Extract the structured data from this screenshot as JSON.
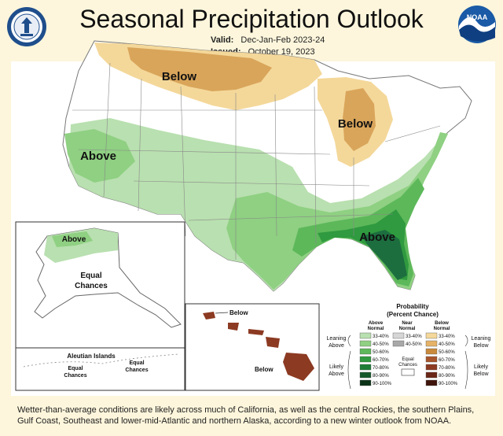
{
  "header": {
    "title": "Seasonal Precipitation Outlook",
    "valid_label": "Valid:",
    "valid_value": "Dec-Jan-Feb 2023-24",
    "issued_label": "Issued:",
    "issued_value": "October 19, 2023"
  },
  "logos": {
    "left": "department-of-commerce-seal",
    "right": "noaa-logo",
    "right_text": "NOAA"
  },
  "map": {
    "conus_labels": {
      "north_plains": "Below",
      "great_lakes": "Below",
      "california": "Above",
      "southeast": "Above"
    },
    "alaska": {
      "above_label": "Above",
      "equal_label_1": "Equal",
      "equal_label_2": "Chances",
      "aleutian_title": "Aleutian Islands",
      "aleutian_left_1": "Equal",
      "aleutian_left_2": "Chances",
      "aleutian_right_1": "Equal",
      "aleutian_right_2": "Chances"
    },
    "hawaii": {
      "below_top": "Below",
      "below_bottom": "Below"
    }
  },
  "legend": {
    "title_1": "Probability",
    "title_2": "(Percent Chance)",
    "col_above_1": "Above",
    "col_above_2": "Normal",
    "col_near_1": "Near",
    "col_near_2": "Normal",
    "col_below_1": "Below",
    "col_below_2": "Normal",
    "leaning_above_1": "Leaning",
    "leaning_above_2": "Above",
    "leaning_below_1": "Leaning",
    "leaning_below_2": "Below",
    "likely_above_1": "Likely",
    "likely_above_2": "Above",
    "likely_below_1": "Likely",
    "likely_below_2": "Below",
    "equal_1": "Equal",
    "equal_2": "Chances",
    "above_rows": [
      {
        "label": "33-40%",
        "color": "#b9e0b0"
      },
      {
        "label": "40-50%",
        "color": "#8fd082"
      },
      {
        "label": "50-60%",
        "color": "#5db85a"
      },
      {
        "label": "60-70%",
        "color": "#2f9a3f"
      },
      {
        "label": "70-80%",
        "color": "#1d7d36"
      },
      {
        "label": "80-90%",
        "color": "#15592a"
      },
      {
        "label": "90-100%",
        "color": "#0b3318"
      }
    ],
    "near_rows": [
      {
        "label": "33-40%",
        "color": "#d6d6d6"
      },
      {
        "label": "40-50%",
        "color": "#a8a8a8"
      }
    ],
    "below_rows": [
      {
        "label": "33-40%",
        "color": "#f4d89a"
      },
      {
        "label": "40-50%",
        "color": "#e5b368"
      },
      {
        "label": "50-60%",
        "color": "#c98a3c"
      },
      {
        "label": "60-70%",
        "color": "#a8552c"
      },
      {
        "label": "70-80%",
        "color": "#8c3a22"
      },
      {
        "label": "80-90%",
        "color": "#6a2616"
      },
      {
        "label": "90-100%",
        "color": "#3f140a"
      }
    ]
  },
  "colors": {
    "background": "#fdf6dc",
    "above_light": "#b9e0b0",
    "above_medium": "#8fd082",
    "above_strong": "#5db85a",
    "above_dark": "#2f9a3f",
    "above_darkest": "#1d6e3f",
    "below_light": "#f4d89a",
    "below_medium": "#d9a55a",
    "hawaii": "#8c3a22"
  },
  "caption": "Wetter-than-average conditions are likely across much of California, as well as the central Rockies, the southern Plains, Gulf Coast, Southeast and lower-mid-Atlantic and northern Alaska, according to a new winter outlook from NOAA."
}
